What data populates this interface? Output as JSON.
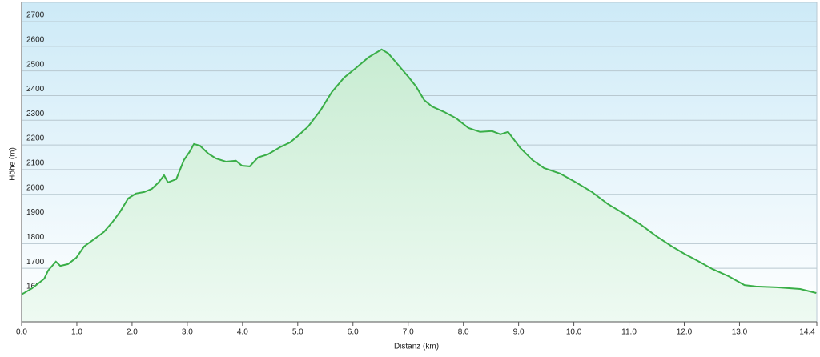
{
  "chart_data": {
    "type": "area",
    "x_label": "Distanz (km)",
    "y_label": "Höhe (m)",
    "x": [
      0,
      0.19,
      0.41,
      0.48,
      0.62,
      0.7,
      0.84,
      0.99,
      1.13,
      1.35,
      1.49,
      1.64,
      1.78,
      1.93,
      2.07,
      2.22,
      2.36,
      2.48,
      2.58,
      2.65,
      2.8,
      2.94,
      3.04,
      3.12,
      3.23,
      3.38,
      3.52,
      3.7,
      3.88,
      3.99,
      4.13,
      4.28,
      4.46,
      4.68,
      4.86,
      5.0,
      5.19,
      5.41,
      5.62,
      5.84,
      6.06,
      6.28,
      6.42,
      6.52,
      6.64,
      6.78,
      7.0,
      7.14,
      7.29,
      7.43,
      7.65,
      7.87,
      8.09,
      8.3,
      8.52,
      8.67,
      8.81,
      9.03,
      9.25,
      9.46,
      9.75,
      10.04,
      10.33,
      10.62,
      10.91,
      11.2,
      11.49,
      11.78,
      12.0,
      12.22,
      12.51,
      12.8,
      13.09,
      13.3,
      13.67,
      14.1,
      14.39
    ],
    "series": [
      {
        "color": "#3aae48",
        "values": [
          1594,
          1619,
          1658,
          1691,
          1727,
          1710,
          1717,
          1743,
          1788,
          1824,
          1847,
          1886,
          1928,
          1983,
          2003,
          2009,
          2022,
          2048,
          2077,
          2048,
          2061,
          2139,
          2171,
          2204,
          2197,
          2165,
          2145,
          2132,
          2136,
          2116,
          2113,
          2149,
          2162,
          2191,
          2210,
          2236,
          2275,
          2340,
          2415,
          2473,
          2513,
          2555,
          2574,
          2587,
          2571,
          2535,
          2477,
          2438,
          2382,
          2356,
          2334,
          2308,
          2269,
          2253,
          2256,
          2243,
          2253,
          2188,
          2139,
          2106,
          2084,
          2048,
          2009,
          1960,
          1921,
          1879,
          1831,
          1788,
          1759,
          1733,
          1697,
          1668,
          1632,
          1626,
          1623,
          1616,
          1600
        ]
      }
    ],
    "xlim": [
      0,
      14.4
    ],
    "ylim": [
      1483,
      2778
    ],
    "xticks": [
      {
        "value": 0,
        "label": "0.0"
      },
      {
        "value": 1,
        "label": "1.0"
      },
      {
        "value": 2,
        "label": "2.0"
      },
      {
        "value": 3,
        "label": "3.0"
      },
      {
        "value": 4,
        "label": "4.0"
      },
      {
        "value": 5,
        "label": "5.0"
      },
      {
        "value": 6,
        "label": "6.0"
      },
      {
        "value": 7,
        "label": "7.0"
      },
      {
        "value": 8,
        "label": "8.0"
      },
      {
        "value": 9,
        "label": "9.0"
      },
      {
        "value": 10,
        "label": "10.0"
      },
      {
        "value": 11,
        "label": "11.0"
      },
      {
        "value": 12,
        "label": "12.0"
      },
      {
        "value": 13,
        "label": "13.0"
      },
      {
        "value": 14.4,
        "label": "14.4"
      }
    ],
    "yticks": [
      1600,
      1700,
      1800,
      1900,
      2000,
      2100,
      2200,
      2300,
      2400,
      2500,
      2600,
      2700
    ],
    "grid": true
  }
}
